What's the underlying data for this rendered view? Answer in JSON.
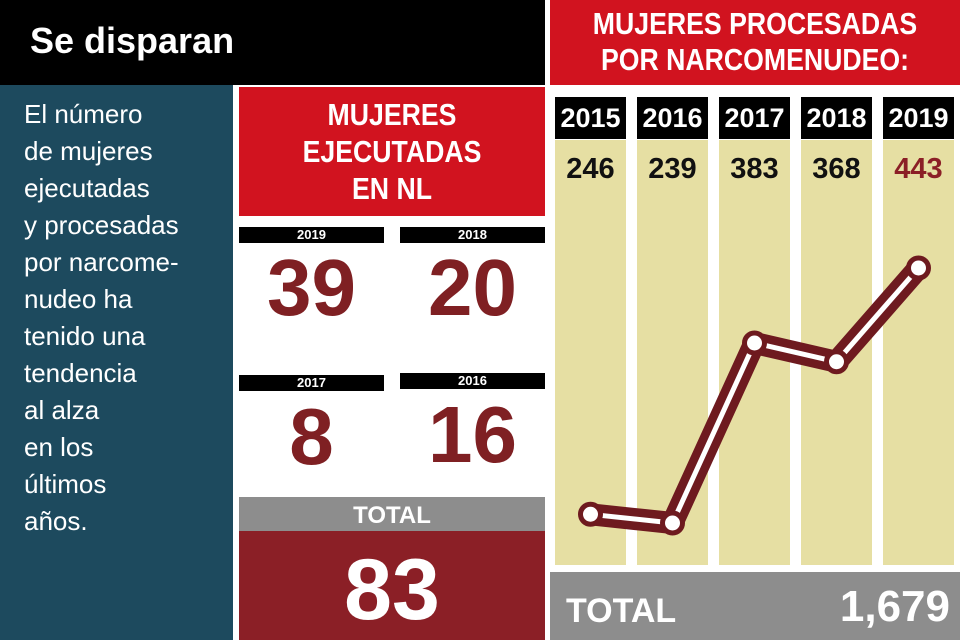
{
  "header": {
    "title": "Se disparan"
  },
  "intro": {
    "text": "El número\nde mujeres\nejecutadas\ny procesadas\npor narcome-\nnudeo ha\ntenido una\ntendencia\nal alza\nen los\núltimos\naños."
  },
  "ejecutadas": {
    "title": "MUJERES\nEJECUTADAS\nEN NL",
    "items": [
      {
        "year": "2019",
        "value": "39"
      },
      {
        "year": "2018",
        "value": "20"
      },
      {
        "year": "2017",
        "value": "8"
      },
      {
        "year": "2016",
        "value": "16"
      }
    ],
    "total_label": "TOTAL",
    "total_value": "83"
  },
  "procesadas": {
    "title": "MUJERES PROCESADAS\nPOR NARCOMENUDEO:",
    "total_label": "TOTAL",
    "total_value": "1,679"
  },
  "colors": {
    "red": "#d1131f",
    "dark_red": "#8b1f26",
    "navy": "#1d4a5e",
    "column_bg": "#e6dfa3",
    "gray": "#8d8d8d",
    "line": "#6e1a1f"
  },
  "chart_data": {
    "type": "line",
    "categories": [
      "2015",
      "2016",
      "2017",
      "2018",
      "2019"
    ],
    "values": [
      246,
      239,
      383,
      368,
      443
    ],
    "value_labels": [
      "246",
      "239",
      "383",
      "368",
      "443"
    ],
    "highlight_last": true,
    "title": "MUJERES PROCESADAS POR NARCOMENUDEO:",
    "grid": false,
    "legend": "none"
  }
}
